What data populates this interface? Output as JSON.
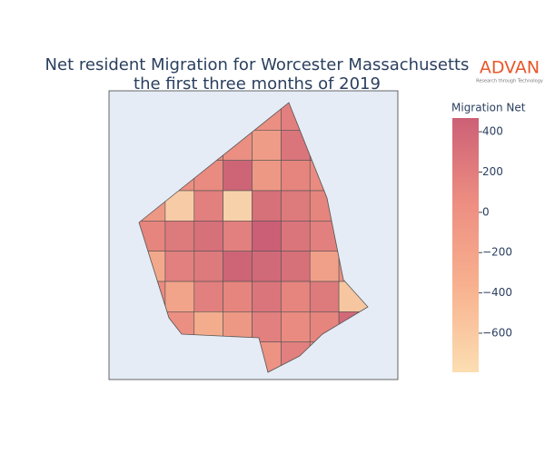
{
  "chart_data": {
    "type": "choropleth",
    "title": [
      "Net resident Migration for Worcester Massachusetts",
      "the first three months of 2019"
    ],
    "logo": "ADVAN",
    "logo_tagline": "Research through Technology",
    "colorbar_title": "Migration Net",
    "zlim": [
      -794,
      468
    ],
    "zticks": [
      {
        "value": 400,
        "label": "400"
      },
      {
        "value": 200,
        "label": "200"
      },
      {
        "value": 0,
        "label": "0"
      },
      {
        "value": -200,
        "label": "−200"
      },
      {
        "value": -400,
        "label": "−400"
      },
      {
        "value": -600,
        "label": "−600"
      }
    ],
    "colorscale": [
      "#fbd8a4",
      "#f7a47b",
      "#ea7a6b",
      "#c3445e"
    ],
    "values": [
      0,
      0,
      0,
      0,
      0,
      150,
      100,
      0,
      0,
      0,
      0,
      0,
      -150,
      250,
      200,
      0,
      0,
      0,
      50,
      400,
      -100,
      100,
      50,
      0,
      -100,
      -650,
      150,
      -700,
      300,
      200,
      100,
      -50,
      100,
      200,
      300,
      150,
      450,
      250,
      150,
      -100,
      -300,
      150,
      200,
      400,
      350,
      300,
      -200,
      0,
      50,
      -250,
      150,
      100,
      250,
      100,
      200,
      -600,
      0,
      0,
      -350,
      -100,
      150,
      50,
      100,
      350,
      0,
      0,
      0,
      0,
      -50,
      150,
      0,
      0
    ]
  }
}
